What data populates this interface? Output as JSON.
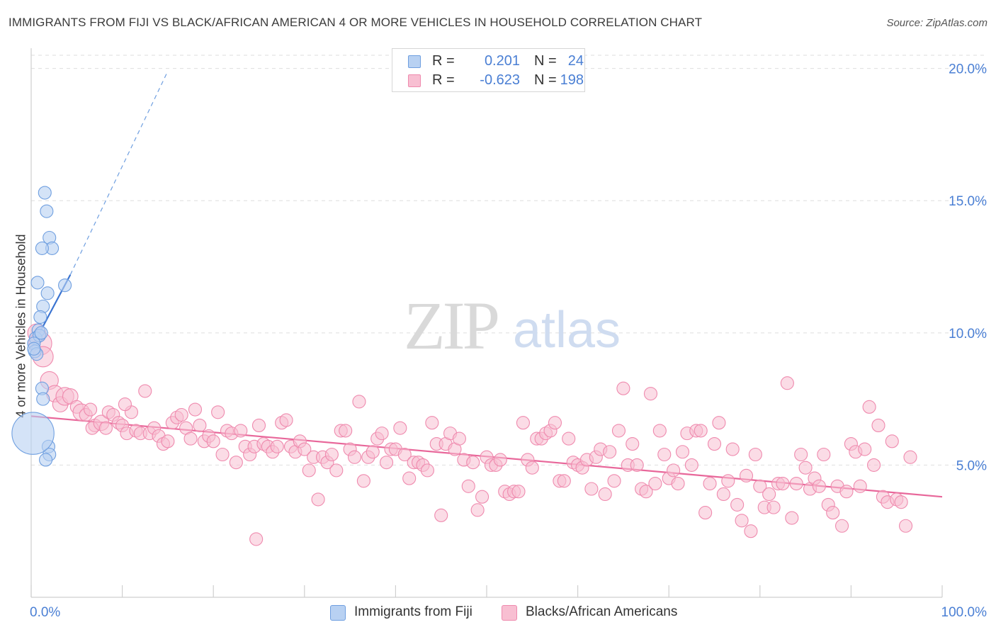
{
  "header": {
    "title": "IMMIGRANTS FROM FIJI VS BLACK/AFRICAN AMERICAN 4 OR MORE VEHICLES IN HOUSEHOLD CORRELATION CHART",
    "source": "Source: ZipAtlas.com"
  },
  "legend": {
    "series1": {
      "r_label": "R =",
      "r_value": "0.201",
      "n_label": "N =",
      "n_value": "24"
    },
    "series2": {
      "r_label": "R =",
      "r_value": "-0.623",
      "n_label": "N =",
      "n_value": "198"
    }
  },
  "watermark": {
    "zip": "ZIP",
    "atlas": "atlas"
  },
  "colors": {
    "blue_fill": "#b8d1f2",
    "blue_stroke": "#6f9fe0",
    "blue_line": "#3b74d1",
    "pink_fill": "#f8bfd2",
    "pink_stroke": "#ef8aae",
    "pink_line": "#e8679a",
    "grid": "#dedede",
    "tick_text": "#4a7fd4"
  },
  "chart_data": {
    "type": "scatter",
    "title": "IMMIGRANTS FROM FIJI VS BLACK/AFRICAN AMERICAN 4 OR MORE VEHICLES IN HOUSEHOLD CORRELATION CHART",
    "xlabel": "",
    "ylabel": "4 or more Vehicles in Household",
    "xlim": [
      0,
      100
    ],
    "ylim": [
      0,
      20.5
    ],
    "x_tick_labels": [
      {
        "value": 0,
        "label": "0.0%"
      },
      {
        "value": 100,
        "label": "100.0%"
      }
    ],
    "x_minor_ticks": [
      0,
      10,
      20,
      30,
      40,
      50,
      60,
      70,
      80,
      90,
      100
    ],
    "y_ticks": [
      {
        "value": 5,
        "label": "5.0%"
      },
      {
        "value": 10,
        "label": "10.0%"
      },
      {
        "value": 15,
        "label": "15.0%"
      },
      {
        "value": 20,
        "label": "20.0%"
      }
    ],
    "grid": true,
    "legend_position": "bottom",
    "series": [
      {
        "name": "Immigrants from Fiji",
        "color": "blue",
        "r": 0.201,
        "n": 24,
        "trend": {
          "x0": 0,
          "y0": 9.4,
          "x1": 4.3,
          "y1": 12.2,
          "dash_to_x": 15,
          "dash_to_y": 19.9
        },
        "points": [
          [
            1.5,
            15.3,
            1
          ],
          [
            1.7,
            14.6,
            1
          ],
          [
            2.0,
            13.6,
            1
          ],
          [
            2.3,
            13.2,
            1
          ],
          [
            1.2,
            13.2,
            1
          ],
          [
            0.7,
            11.9,
            1
          ],
          [
            1.8,
            11.5,
            1
          ],
          [
            3.7,
            11.8,
            1
          ],
          [
            1.3,
            11.0,
            1
          ],
          [
            1.0,
            10.6,
            1
          ],
          [
            0.8,
            10.1,
            1
          ],
          [
            0.5,
            9.8,
            1
          ],
          [
            0.9,
            9.9,
            1
          ],
          [
            0.3,
            9.6,
            1
          ],
          [
            0.4,
            9.3,
            1
          ],
          [
            0.6,
            9.2,
            1
          ],
          [
            1.2,
            7.9,
            1
          ],
          [
            1.3,
            7.5,
            1
          ],
          [
            1.9,
            5.7,
            1
          ],
          [
            2.0,
            5.4,
            1
          ],
          [
            1.6,
            5.2,
            1
          ],
          [
            0.2,
            6.2,
            3.3
          ],
          [
            0.3,
            9.4,
            1
          ],
          [
            1.1,
            10.0,
            1
          ]
        ]
      },
      {
        "name": "Blacks/African Americans",
        "color": "pink",
        "r": -0.623,
        "n": 198,
        "trend": {
          "x0": 0,
          "y0": 6.85,
          "x1": 100,
          "y1": 3.8
        },
        "points": [
          [
            0.6,
            10.0,
            1.4
          ],
          [
            1.0,
            9.6,
            1.8
          ],
          [
            1.3,
            9.1,
            1.6
          ],
          [
            2.0,
            8.2,
            1.4
          ],
          [
            2.6,
            7.7,
            1.3
          ],
          [
            3.2,
            7.3,
            1.2
          ],
          [
            3.7,
            7.6,
            1.4
          ],
          [
            4.3,
            7.6,
            1.2
          ],
          [
            5.0,
            7.2,
            1
          ],
          [
            5.5,
            7.0,
            1.3
          ],
          [
            6.0,
            6.9,
            1
          ],
          [
            6.5,
            7.1,
            1
          ],
          [
            7.0,
            6.5,
            1
          ],
          [
            6.7,
            6.4,
            1
          ],
          [
            7.7,
            6.6,
            1.2
          ],
          [
            8.2,
            6.4,
            1
          ],
          [
            8.5,
            7.0,
            1
          ],
          [
            9.0,
            6.9,
            1
          ],
          [
            9.6,
            6.6,
            1
          ],
          [
            10.0,
            6.5,
            1
          ],
          [
            10.5,
            6.2,
            1
          ],
          [
            11.0,
            7.0,
            1
          ],
          [
            11.5,
            6.3,
            1
          ],
          [
            12.0,
            6.2,
            1
          ],
          [
            10.3,
            7.3,
            1
          ],
          [
            12.5,
            7.8,
            1
          ],
          [
            13.0,
            6.2,
            1
          ],
          [
            13.5,
            6.4,
            1
          ],
          [
            14.0,
            6.1,
            1
          ],
          [
            14.5,
            5.8,
            1
          ],
          [
            15.0,
            5.9,
            1
          ],
          [
            15.5,
            6.6,
            1
          ],
          [
            16.0,
            6.8,
            1
          ],
          [
            16.5,
            6.9,
            1
          ],
          [
            17.0,
            6.4,
            1
          ],
          [
            17.5,
            6.0,
            1
          ],
          [
            18.0,
            7.1,
            1
          ],
          [
            18.5,
            6.5,
            1
          ],
          [
            19.0,
            5.9,
            1
          ],
          [
            19.5,
            6.1,
            1
          ],
          [
            20.0,
            5.9,
            1
          ],
          [
            20.5,
            7.0,
            1
          ],
          [
            21.0,
            5.4,
            1
          ],
          [
            21.5,
            6.3,
            1
          ],
          [
            22.0,
            6.2,
            1
          ],
          [
            22.5,
            5.1,
            1
          ],
          [
            23.0,
            6.3,
            1
          ],
          [
            23.5,
            5.7,
            1
          ],
          [
            24.0,
            5.4,
            1
          ],
          [
            24.5,
            5.7,
            1
          ],
          [
            25.0,
            6.5,
            1
          ],
          [
            25.5,
            5.8,
            1
          ],
          [
            26.0,
            5.7,
            1
          ],
          [
            24.7,
            2.2,
            1
          ],
          [
            26.5,
            5.5,
            1
          ],
          [
            27.0,
            5.7,
            1
          ],
          [
            27.5,
            6.6,
            1
          ],
          [
            28.0,
            6.7,
            1
          ],
          [
            28.5,
            5.7,
            1
          ],
          [
            29.0,
            5.5,
            1
          ],
          [
            29.5,
            5.9,
            1
          ],
          [
            30.0,
            5.6,
            1
          ],
          [
            30.5,
            4.8,
            1
          ],
          [
            31.0,
            5.3,
            1
          ],
          [
            31.5,
            3.7,
            1
          ],
          [
            32.0,
            5.3,
            1
          ],
          [
            32.5,
            5.1,
            1
          ],
          [
            33.0,
            5.4,
            1
          ],
          [
            33.5,
            4.8,
            1
          ],
          [
            34.0,
            6.3,
            1
          ],
          [
            34.5,
            6.3,
            1
          ],
          [
            35.0,
            5.6,
            1
          ],
          [
            35.5,
            5.3,
            1
          ],
          [
            36.0,
            7.4,
            1
          ],
          [
            36.5,
            4.4,
            1
          ],
          [
            37.0,
            5.3,
            1
          ],
          [
            37.5,
            5.5,
            1
          ],
          [
            38.0,
            6.0,
            1
          ],
          [
            38.5,
            6.2,
            1
          ],
          [
            39.0,
            5.1,
            1
          ],
          [
            39.5,
            5.6,
            1
          ],
          [
            40.0,
            5.6,
            1
          ],
          [
            40.5,
            6.4,
            1
          ],
          [
            41.0,
            5.4,
            1
          ],
          [
            41.5,
            4.5,
            1
          ],
          [
            42.0,
            5.1,
            1
          ],
          [
            42.5,
            5.1,
            1
          ],
          [
            43.0,
            5.0,
            1
          ],
          [
            43.5,
            4.8,
            1
          ],
          [
            44.0,
            6.6,
            1
          ],
          [
            44.5,
            5.8,
            1
          ],
          [
            45.0,
            3.1,
            1
          ],
          [
            45.5,
            5.8,
            1
          ],
          [
            46.0,
            6.2,
            1
          ],
          [
            46.5,
            5.6,
            1
          ],
          [
            47.0,
            6.0,
            1
          ],
          [
            47.5,
            5.2,
            1
          ],
          [
            48.0,
            4.2,
            1
          ],
          [
            48.5,
            5.1,
            1
          ],
          [
            49.0,
            3.3,
            1
          ],
          [
            49.5,
            3.8,
            1
          ],
          [
            50.0,
            5.3,
            1
          ],
          [
            50.5,
            5.0,
            1
          ],
          [
            51.0,
            5.0,
            1
          ],
          [
            51.5,
            5.2,
            1
          ],
          [
            52.0,
            4.0,
            1
          ],
          [
            52.5,
            3.9,
            1
          ],
          [
            53.0,
            4.0,
            1
          ],
          [
            53.5,
            4.0,
            1
          ],
          [
            54.0,
            6.6,
            1
          ],
          [
            54.5,
            5.2,
            1
          ],
          [
            55.0,
            4.9,
            1
          ],
          [
            55.5,
            6.0,
            1
          ],
          [
            56.0,
            6.0,
            1
          ],
          [
            56.5,
            6.2,
            1
          ],
          [
            57.0,
            6.3,
            1
          ],
          [
            57.5,
            6.6,
            1
          ],
          [
            58.0,
            4.4,
            1
          ],
          [
            58.5,
            4.4,
            1
          ],
          [
            59.0,
            6.0,
            1
          ],
          [
            59.5,
            5.1,
            1
          ],
          [
            60.0,
            5.0,
            1
          ],
          [
            60.5,
            4.9,
            1
          ],
          [
            61.0,
            5.2,
            1
          ],
          [
            61.5,
            4.1,
            1
          ],
          [
            62.0,
            5.3,
            1
          ],
          [
            62.5,
            5.6,
            1
          ],
          [
            63.0,
            3.9,
            1
          ],
          [
            63.5,
            5.5,
            1
          ],
          [
            64.0,
            4.4,
            1
          ],
          [
            64.5,
            6.3,
            1
          ],
          [
            65.0,
            7.9,
            1
          ],
          [
            65.5,
            5.0,
            1
          ],
          [
            66.0,
            5.8,
            1
          ],
          [
            66.5,
            5.0,
            1
          ],
          [
            67.0,
            4.1,
            1
          ],
          [
            67.5,
            4.0,
            1
          ],
          [
            68.0,
            7.7,
            1
          ],
          [
            68.5,
            4.3,
            1
          ],
          [
            69.0,
            6.3,
            1
          ],
          [
            69.5,
            5.4,
            1
          ],
          [
            70.0,
            4.5,
            1
          ],
          [
            70.5,
            4.8,
            1
          ],
          [
            71.0,
            4.3,
            1
          ],
          [
            71.5,
            5.5,
            1
          ],
          [
            72.0,
            6.2,
            1
          ],
          [
            72.5,
            5.0,
            1
          ],
          [
            73.0,
            6.3,
            1
          ],
          [
            73.5,
            6.3,
            1
          ],
          [
            74.0,
            3.2,
            1
          ],
          [
            74.5,
            4.3,
            1
          ],
          [
            75.0,
            5.8,
            1
          ],
          [
            75.5,
            6.6,
            1
          ],
          [
            76.0,
            3.9,
            1
          ],
          [
            76.5,
            4.4,
            1
          ],
          [
            77.0,
            5.6,
            1
          ],
          [
            77.5,
            3.5,
            1
          ],
          [
            78.0,
            2.9,
            1
          ],
          [
            78.5,
            4.6,
            1
          ],
          [
            79.0,
            2.5,
            1
          ],
          [
            79.5,
            5.4,
            1
          ],
          [
            80.0,
            4.2,
            1
          ],
          [
            80.5,
            3.4,
            1
          ],
          [
            81.0,
            3.9,
            1
          ],
          [
            81.5,
            3.4,
            1
          ],
          [
            82.0,
            4.3,
            1
          ],
          [
            82.5,
            4.3,
            1
          ],
          [
            83.0,
            8.1,
            1
          ],
          [
            83.5,
            3.0,
            1
          ],
          [
            84.0,
            4.3,
            1
          ],
          [
            84.5,
            5.4,
            1
          ],
          [
            85.0,
            4.9,
            1
          ],
          [
            85.5,
            4.1,
            1
          ],
          [
            86.0,
            4.5,
            1
          ],
          [
            86.5,
            4.2,
            1
          ],
          [
            87.0,
            5.4,
            1
          ],
          [
            87.5,
            3.5,
            1
          ],
          [
            88.0,
            3.2,
            1
          ],
          [
            88.5,
            4.2,
            1
          ],
          [
            89.0,
            2.7,
            1
          ],
          [
            89.5,
            4.0,
            1
          ],
          [
            90.0,
            5.8,
            1
          ],
          [
            90.5,
            5.5,
            1
          ],
          [
            91.0,
            4.2,
            1
          ],
          [
            91.5,
            5.6,
            1
          ],
          [
            92.0,
            7.2,
            1
          ],
          [
            92.5,
            5.0,
            1
          ],
          [
            93.0,
            6.5,
            1
          ],
          [
            93.5,
            3.8,
            1
          ],
          [
            94.0,
            3.6,
            1
          ],
          [
            94.5,
            5.9,
            1
          ],
          [
            95.0,
            3.7,
            1
          ],
          [
            95.5,
            3.6,
            1
          ],
          [
            96.0,
            2.7,
            1
          ],
          [
            96.5,
            5.3,
            1
          ]
        ]
      }
    ]
  },
  "bottom_legend": {
    "series1_label": "Immigrants from Fiji",
    "series2_label": "Blacks/African Americans"
  }
}
